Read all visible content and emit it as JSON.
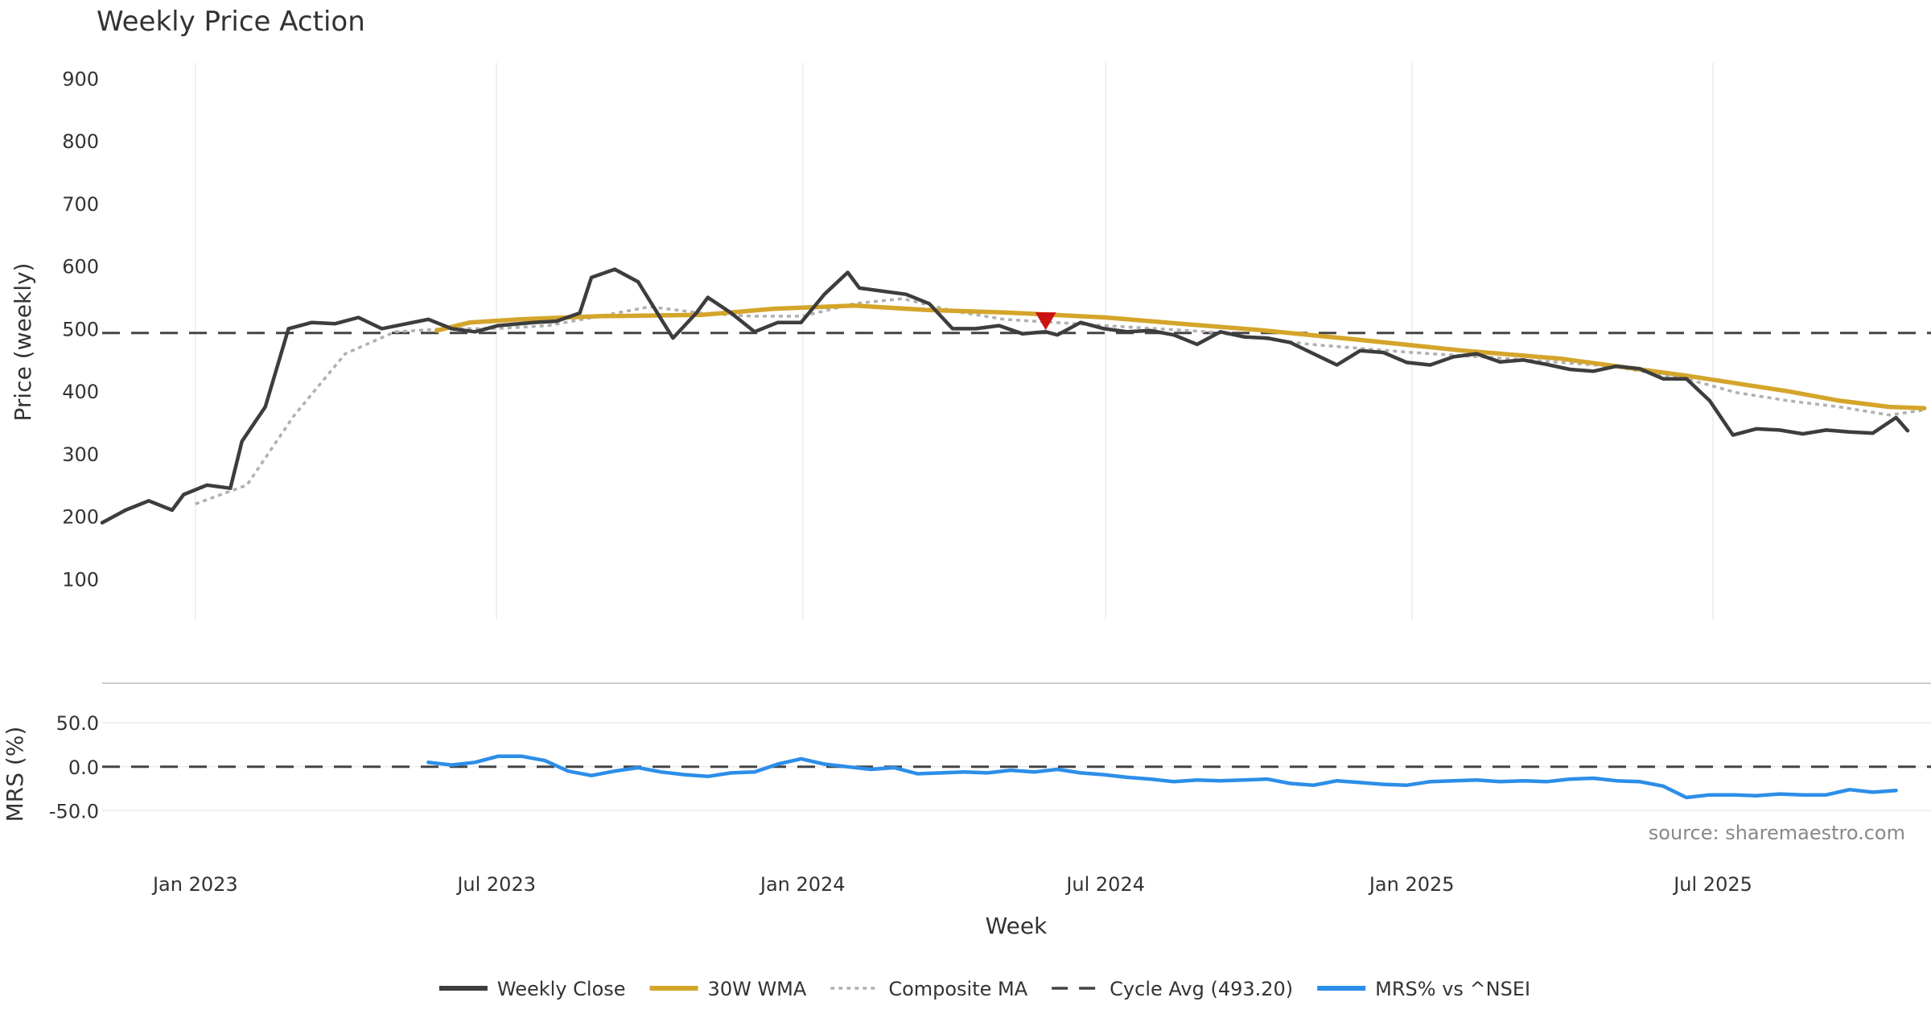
{
  "chart_data": [
    {
      "type": "line",
      "title": "Weekly Price Action",
      "ylabel": "Price (weekly)",
      "xlabel": "Week",
      "ylim": [
        35,
        925
      ],
      "yticks": [
        100,
        200,
        300,
        400,
        500,
        600,
        700,
        800,
        900
      ],
      "x_range": [
        "2022-11-06",
        "2025-11-09"
      ],
      "x_ticks": [
        {
          "date": "2023-01-01",
          "label": "Jan 2023"
        },
        {
          "date": "2023-07-01",
          "label": "Jul 2023"
        },
        {
          "date": "2024-01-01",
          "label": "Jan 2024"
        },
        {
          "date": "2024-07-01",
          "label": "Jul 2024"
        },
        {
          "date": "2025-01-01",
          "label": "Jan 2025"
        },
        {
          "date": "2025-07-01",
          "label": "Jul 2025"
        }
      ],
      "series": [
        {
          "name": "Weekly Close",
          "color": "#3d3d3d",
          "points": [
            [
              "2022-11-06",
              190
            ],
            [
              "2022-11-20",
              210
            ],
            [
              "2022-12-04",
              225
            ],
            [
              "2022-12-18",
              210
            ],
            [
              "2022-12-25",
              235
            ],
            [
              "2023-01-08",
              250
            ],
            [
              "2023-01-22",
              245
            ],
            [
              "2023-01-29",
              320
            ],
            [
              "2023-02-12",
              375
            ],
            [
              "2023-02-26",
              500
            ],
            [
              "2023-03-12",
              510
            ],
            [
              "2023-03-26",
              508
            ],
            [
              "2023-04-09",
              518
            ],
            [
              "2023-04-23",
              500
            ],
            [
              "2023-05-21",
              515
            ],
            [
              "2023-06-04",
              500
            ],
            [
              "2023-06-18",
              495
            ],
            [
              "2023-07-02",
              505
            ],
            [
              "2023-07-23",
              510
            ],
            [
              "2023-08-06",
              512
            ],
            [
              "2023-08-20",
              525
            ],
            [
              "2023-08-27",
              582
            ],
            [
              "2023-09-10",
              595
            ],
            [
              "2023-09-24",
              575
            ],
            [
              "2023-10-08",
              515
            ],
            [
              "2023-10-15",
              485
            ],
            [
              "2023-10-29",
              525
            ],
            [
              "2023-11-05",
              550
            ],
            [
              "2023-11-19",
              525
            ],
            [
              "2023-12-03",
              495
            ],
            [
              "2023-12-17",
              510
            ],
            [
              "2023-12-31",
              510
            ],
            [
              "2024-01-14",
              555
            ],
            [
              "2024-01-28",
              590
            ],
            [
              "2024-02-04",
              565
            ],
            [
              "2024-02-18",
              560
            ],
            [
              "2024-03-03",
              555
            ],
            [
              "2024-03-17",
              540
            ],
            [
              "2024-03-31",
              500
            ],
            [
              "2024-04-14",
              500
            ],
            [
              "2024-04-28",
              505
            ],
            [
              "2024-05-12",
              492
            ],
            [
              "2024-05-26",
              495
            ],
            [
              "2024-06-02",
              490
            ],
            [
              "2024-06-16",
              510
            ],
            [
              "2024-06-30",
              500
            ],
            [
              "2024-07-14",
              495
            ],
            [
              "2024-07-28",
              497
            ],
            [
              "2024-08-11",
              490
            ],
            [
              "2024-08-25",
              475
            ],
            [
              "2024-09-08",
              495
            ],
            [
              "2024-09-22",
              487
            ],
            [
              "2024-10-06",
              485
            ],
            [
              "2024-10-20",
              478
            ],
            [
              "2024-11-03",
              460
            ],
            [
              "2024-11-17",
              442
            ],
            [
              "2024-12-01",
              465
            ],
            [
              "2024-12-15",
              462
            ],
            [
              "2024-12-29",
              446
            ],
            [
              "2025-01-12",
              442
            ],
            [
              "2025-01-26",
              455
            ],
            [
              "2025-02-09",
              460
            ],
            [
              "2025-02-23",
              447
            ],
            [
              "2025-03-09",
              450
            ],
            [
              "2025-03-23",
              443
            ],
            [
              "2025-04-06",
              435
            ],
            [
              "2025-04-20",
              432
            ],
            [
              "2025-05-04",
              440
            ],
            [
              "2025-05-18",
              436
            ],
            [
              "2025-06-01",
              420
            ],
            [
              "2025-06-15",
              420
            ],
            [
              "2025-06-29",
              385
            ],
            [
              "2025-07-13",
              330
            ],
            [
              "2025-07-27",
              340
            ],
            [
              "2025-08-10",
              338
            ],
            [
              "2025-08-24",
              332
            ],
            [
              "2025-09-07",
              338
            ],
            [
              "2025-09-21",
              335
            ],
            [
              "2025-10-05",
              333
            ],
            [
              "2025-10-19",
              358
            ],
            [
              "2025-10-26",
              337
            ]
          ]
        },
        {
          "name": "30W WMA",
          "color": "#d4a52b",
          "points": [
            [
              "2023-05-26",
              497
            ],
            [
              "2023-06-15",
              510
            ],
            [
              "2023-07-15",
              515
            ],
            [
              "2023-09-01",
              520
            ],
            [
              "2023-11-01",
              522
            ],
            [
              "2023-12-15",
              532
            ],
            [
              "2024-02-01",
              537
            ],
            [
              "2024-03-15",
              530
            ],
            [
              "2024-05-01",
              526
            ],
            [
              "2024-07-01",
              518
            ],
            [
              "2024-08-15",
              508
            ],
            [
              "2024-10-01",
              498
            ],
            [
              "2024-12-01",
              482
            ],
            [
              "2025-02-01",
              465
            ],
            [
              "2025-04-01",
              452
            ],
            [
              "2025-06-15",
              425
            ],
            [
              "2025-08-15",
              400
            ],
            [
              "2025-09-15",
              385
            ],
            [
              "2025-10-15",
              375
            ],
            [
              "2025-11-05",
              373
            ]
          ]
        },
        {
          "name": "Composite MA",
          "color": "#b0b0b0",
          "points": [
            [
              "2023-01-01",
              220
            ],
            [
              "2023-02-01",
              250
            ],
            [
              "2023-03-01",
              360
            ],
            [
              "2023-04-01",
              460
            ],
            [
              "2023-05-01",
              495
            ],
            [
              "2023-06-01",
              500
            ],
            [
              "2023-07-01",
              500
            ],
            [
              "2023-08-01",
              505
            ],
            [
              "2023-09-01",
              520
            ],
            [
              "2023-10-01",
              535
            ],
            [
              "2023-11-01",
              525
            ],
            [
              "2023-12-01",
              520
            ],
            [
              "2024-01-01",
              520
            ],
            [
              "2024-02-01",
              540
            ],
            [
              "2024-03-01",
              548
            ],
            [
              "2024-04-01",
              528
            ],
            [
              "2024-05-01",
              515
            ],
            [
              "2024-07-01",
              505
            ],
            [
              "2024-09-01",
              495
            ],
            [
              "2024-11-01",
              475
            ],
            [
              "2025-01-01",
              462
            ],
            [
              "2025-03-01",
              452
            ],
            [
              "2025-05-01",
              440
            ],
            [
              "2025-06-15",
              420
            ],
            [
              "2025-07-15",
              398
            ],
            [
              "2025-08-15",
              385
            ],
            [
              "2025-09-15",
              375
            ],
            [
              "2025-10-15",
              362
            ],
            [
              "2025-11-05",
              370
            ]
          ]
        },
        {
          "name": "Cycle Avg (493.20)",
          "color": "#444444",
          "points": [
            [
              "2022-11-06",
              493.2
            ],
            [
              "2025-11-09",
              493.2
            ]
          ]
        }
      ],
      "markers": [
        {
          "type": "down-triangle",
          "color": "#cc1111",
          "date": "2024-05-26",
          "y": 512
        }
      ]
    },
    {
      "type": "line",
      "ylabel": "MRS (%)",
      "ylim": [
        -100,
        95
      ],
      "yticks": [
        -50.0,
        0.0,
        50.0
      ],
      "yticklabels": [
        "-50.0",
        "0.0",
        "50.0"
      ],
      "series": [
        {
          "name": "MRS% vs ^NSEI",
          "color": "#2c8ee8",
          "points": [
            [
              "2023-05-21",
              5
            ],
            [
              "2023-06-04",
              2
            ],
            [
              "2023-06-18",
              5
            ],
            [
              "2023-07-02",
              12
            ],
            [
              "2023-07-16",
              12
            ],
            [
              "2023-07-30",
              7
            ],
            [
              "2023-08-13",
              -5
            ],
            [
              "2023-08-27",
              -10
            ],
            [
              "2023-09-10",
              -5
            ],
            [
              "2023-09-24",
              -1
            ],
            [
              "2023-10-08",
              -6
            ],
            [
              "2023-10-22",
              -9
            ],
            [
              "2023-11-05",
              -11
            ],
            [
              "2023-11-19",
              -7
            ],
            [
              "2023-12-03",
              -6
            ],
            [
              "2023-12-17",
              3
            ],
            [
              "2023-12-31",
              9
            ],
            [
              "2024-01-14",
              3
            ],
            [
              "2024-01-28",
              0
            ],
            [
              "2024-02-11",
              -3
            ],
            [
              "2024-02-25",
              -1
            ],
            [
              "2024-03-10",
              -8
            ],
            [
              "2024-03-24",
              -7
            ],
            [
              "2024-04-07",
              -6
            ],
            [
              "2024-04-21",
              -7
            ],
            [
              "2024-05-05",
              -4
            ],
            [
              "2024-05-19",
              -6
            ],
            [
              "2024-06-02",
              -3
            ],
            [
              "2024-06-16",
              -7
            ],
            [
              "2024-06-30",
              -9
            ],
            [
              "2024-07-14",
              -12
            ],
            [
              "2024-07-28",
              -14
            ],
            [
              "2024-08-11",
              -17
            ],
            [
              "2024-08-25",
              -15
            ],
            [
              "2024-09-08",
              -16
            ],
            [
              "2024-09-22",
              -15
            ],
            [
              "2024-10-06",
              -14
            ],
            [
              "2024-10-20",
              -19
            ],
            [
              "2024-11-03",
              -21
            ],
            [
              "2024-11-17",
              -16
            ],
            [
              "2024-12-01",
              -18
            ],
            [
              "2024-12-15",
              -20
            ],
            [
              "2024-12-29",
              -21
            ],
            [
              "2025-01-12",
              -17
            ],
            [
              "2025-01-26",
              -16
            ],
            [
              "2025-02-09",
              -15
            ],
            [
              "2025-02-23",
              -17
            ],
            [
              "2025-03-09",
              -16
            ],
            [
              "2025-03-23",
              -17
            ],
            [
              "2025-04-06",
              -14
            ],
            [
              "2025-04-20",
              -13
            ],
            [
              "2025-05-04",
              -16
            ],
            [
              "2025-05-18",
              -17
            ],
            [
              "2025-06-01",
              -22
            ],
            [
              "2025-06-15",
              -35
            ],
            [
              "2025-06-29",
              -32
            ],
            [
              "2025-07-13",
              -32
            ],
            [
              "2025-07-27",
              -33
            ],
            [
              "2025-08-10",
              -31
            ],
            [
              "2025-08-24",
              -32
            ],
            [
              "2025-09-07",
              -32
            ],
            [
              "2025-09-21",
              -26
            ],
            [
              "2025-10-05",
              -29
            ],
            [
              "2025-10-19",
              -27
            ]
          ]
        },
        {
          "name": "zero-line",
          "color": "#444444",
          "points": [
            [
              "2022-11-06",
              0
            ],
            [
              "2025-11-09",
              0
            ]
          ]
        }
      ]
    }
  ],
  "legend": [
    {
      "label": "Weekly Close",
      "color": "#3d3d3d",
      "style": "solid"
    },
    {
      "label": "30W WMA",
      "color": "#d4a52b",
      "style": "solid"
    },
    {
      "label": "Composite MA",
      "color": "#b0b0b0",
      "style": "dotted"
    },
    {
      "label": "Cycle Avg (493.20)",
      "color": "#444444",
      "style": "dashed"
    },
    {
      "label": "MRS% vs ^NSEI",
      "color": "#2c8ee8",
      "style": "solid"
    }
  ],
  "source_text": "source: sharemaestro.com"
}
